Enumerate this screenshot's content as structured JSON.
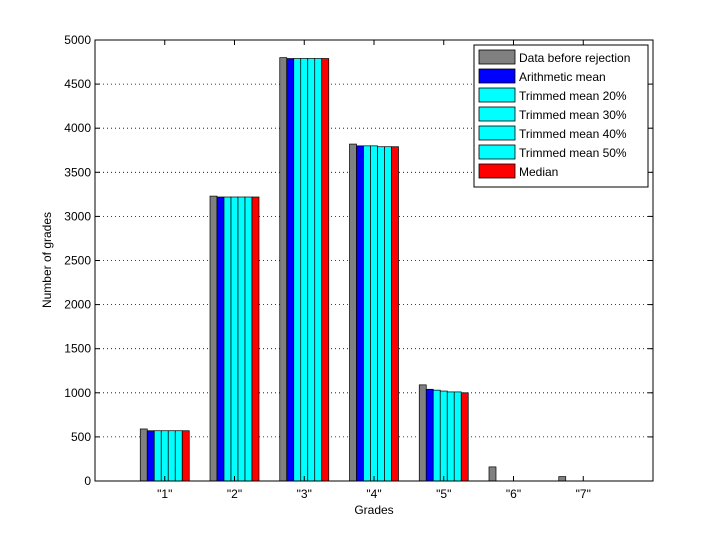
{
  "chart_data": {
    "type": "bar",
    "title": "",
    "xlabel": "Grades",
    "ylabel": "Number of grades",
    "ylim": [
      0,
      5000
    ],
    "yticks": [
      0,
      500,
      1000,
      1500,
      2000,
      2500,
      3000,
      3500,
      4000,
      4500,
      5000
    ],
    "grid": "horizontal-dotted",
    "legend_position": "top-right",
    "categories": [
      "\"1\"",
      "\"2\"",
      "\"3\"",
      "\"4\"",
      "\"5\"",
      "\"6\"",
      "\"7\""
    ],
    "series": [
      {
        "name": "Data before rejection",
        "color": "#808080",
        "values": [
          590,
          3230,
          4800,
          3820,
          1090,
          160,
          50
        ]
      },
      {
        "name": "Arithmetic mean",
        "color": "#0000ff",
        "values": [
          570,
          3220,
          4790,
          3800,
          1040,
          0,
          0
        ]
      },
      {
        "name": "Trimmed mean 20%",
        "color": "#00ffff",
        "values": [
          570,
          3220,
          4790,
          3800,
          1030,
          0,
          0
        ]
      },
      {
        "name": "Trimmed mean 30%",
        "color": "#00ffff",
        "values": [
          570,
          3220,
          4790,
          3800,
          1020,
          0,
          0
        ]
      },
      {
        "name": "Trimmed mean 40%",
        "color": "#00ffff",
        "values": [
          570,
          3220,
          4790,
          3790,
          1010,
          0,
          0
        ]
      },
      {
        "name": "Trimmed mean 50%",
        "color": "#00ffff",
        "values": [
          570,
          3220,
          4790,
          3790,
          1010,
          0,
          0
        ]
      },
      {
        "name": "Median",
        "color": "#ff0000",
        "values": [
          570,
          3220,
          4790,
          3790,
          1000,
          0,
          0
        ]
      }
    ]
  }
}
